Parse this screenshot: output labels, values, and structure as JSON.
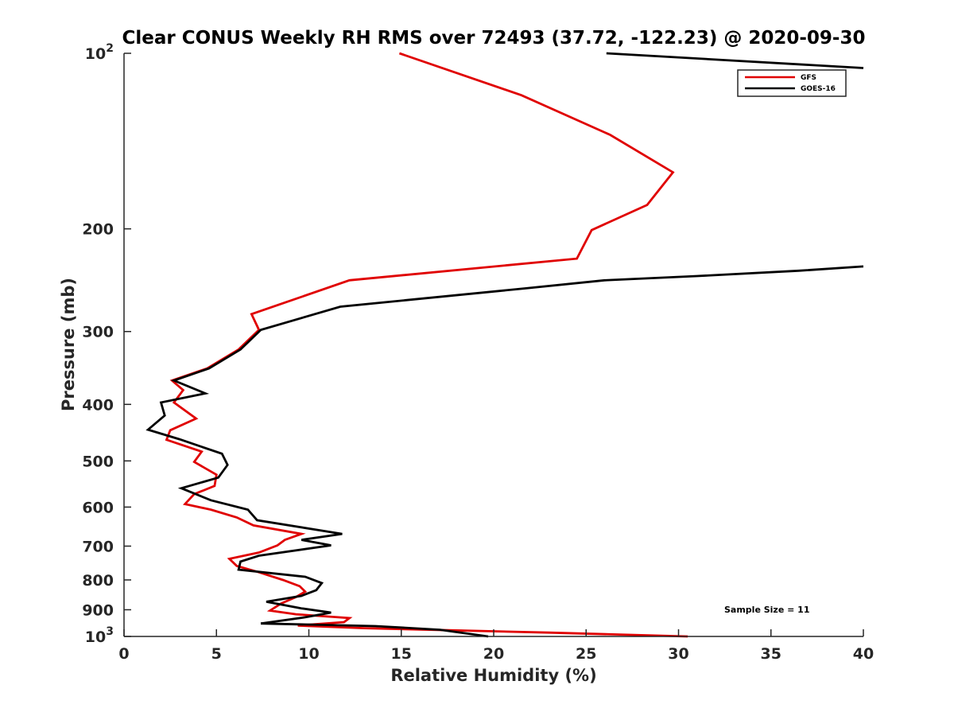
{
  "chart_data": {
    "type": "line",
    "title": "Clear CONUS Weekly RH RMS over 72493 (37.72, -122.23) @ 2020-09-30",
    "xlabel": "Relative Humidity (%)",
    "ylabel": "Pressure (mb)",
    "xlim": [
      0,
      40
    ],
    "ylim": [
      100,
      1000
    ],
    "yscale": "log",
    "y_reversed": true,
    "x_ticks": [
      0,
      5,
      10,
      15,
      20,
      25,
      30,
      35,
      40
    ],
    "y_ticks": [
      {
        "value": 100,
        "base": "10",
        "exp": "2"
      },
      {
        "value": 200,
        "label": "200"
      },
      {
        "value": 300,
        "label": "300"
      },
      {
        "value": 400,
        "label": "400"
      },
      {
        "value": 500,
        "label": "500"
      },
      {
        "value": 600,
        "label": "600"
      },
      {
        "value": 700,
        "label": "700"
      },
      {
        "value": 800,
        "label": "800"
      },
      {
        "value": 900,
        "label": "900"
      },
      {
        "value": 1000,
        "base": "10",
        "exp": "3"
      }
    ],
    "grid": false,
    "legend_position": "top-right",
    "series": [
      {
        "name": "GFS",
        "color": "#e00000",
        "points": [
          [
            14.9,
            100
          ],
          [
            21.5,
            118
          ],
          [
            26.3,
            138
          ],
          [
            29.7,
            160
          ],
          [
            28.3,
            182
          ],
          [
            25.3,
            201
          ],
          [
            24.5,
            225
          ],
          [
            12.2,
            245
          ],
          [
            6.9,
            280
          ],
          [
            7.3,
            298
          ],
          [
            6.2,
            322
          ],
          [
            4.5,
            347
          ],
          [
            2.6,
            364
          ],
          [
            3.2,
            378
          ],
          [
            2.7,
            397
          ],
          [
            3.9,
            423
          ],
          [
            2.5,
            443
          ],
          [
            2.3,
            460
          ],
          [
            4.2,
            482
          ],
          [
            3.8,
            502
          ],
          [
            5.0,
            528
          ],
          [
            4.9,
            552
          ],
          [
            3.8,
            570
          ],
          [
            3.3,
            593
          ],
          [
            4.7,
            606
          ],
          [
            6.1,
            625
          ],
          [
            7.0,
            645
          ],
          [
            9.6,
            667
          ],
          [
            8.7,
            683
          ],
          [
            8.3,
            698
          ],
          [
            7.3,
            718
          ],
          [
            5.7,
            736
          ],
          [
            6.1,
            757
          ],
          [
            7.3,
            776
          ],
          [
            8.6,
            800
          ],
          [
            9.5,
            820
          ],
          [
            9.8,
            838
          ],
          [
            9.3,
            856
          ],
          [
            8.5,
            878
          ],
          [
            7.9,
            903
          ],
          [
            9.3,
            916
          ],
          [
            12.2,
            930
          ],
          [
            11.9,
            945
          ],
          [
            9.4,
            958
          ],
          [
            13.0,
            968
          ],
          [
            23.0,
            985
          ],
          [
            30.5,
            1000
          ]
        ]
      },
      {
        "name": "GOES-16",
        "color": "#000000",
        "points": [
          [
            26.1,
            100
          ],
          [
            40.0,
            106
          ]
        ],
        "segments": [
          [
            [
              26.1,
              100
            ],
            [
              40.0,
              106
            ]
          ],
          [
            [
              40.0,
              232
            ],
            [
              36.5,
              236
            ],
            [
              31.0,
              241
            ],
            [
              26.0,
              245
            ],
            [
              21.7,
              253
            ],
            [
              11.7,
              272
            ],
            [
              7.4,
              298
            ],
            [
              6.3,
              322
            ],
            [
              4.6,
              347
            ],
            [
              2.7,
              364
            ],
            [
              4.4,
              383
            ],
            [
              2.0,
              397
            ],
            [
              2.2,
              418
            ],
            [
              1.3,
              442
            ],
            [
              3.0,
              459
            ],
            [
              5.3,
              486
            ],
            [
              5.6,
              508
            ],
            [
              5.1,
              534
            ],
            [
              3.1,
              557
            ],
            [
              4.7,
              584
            ],
            [
              6.7,
              606
            ],
            [
              7.2,
              632
            ],
            [
              11.8,
              667
            ],
            [
              9.6,
              683
            ],
            [
              11.2,
              698
            ],
            [
              7.3,
              727
            ],
            [
              6.3,
              744
            ],
            [
              6.2,
              768
            ],
            [
              9.8,
              790
            ],
            [
              10.7,
              810
            ],
            [
              10.4,
              833
            ],
            [
              9.6,
              852
            ],
            [
              7.7,
              872
            ],
            [
              9.6,
              895
            ],
            [
              11.2,
              910
            ],
            [
              9.8,
              927
            ],
            [
              7.4,
              950
            ],
            [
              13.6,
              960
            ],
            [
              17.1,
              974
            ],
            [
              19.7,
              1000
            ]
          ]
        ]
      }
    ],
    "annotation": "Sample Size = 11"
  }
}
